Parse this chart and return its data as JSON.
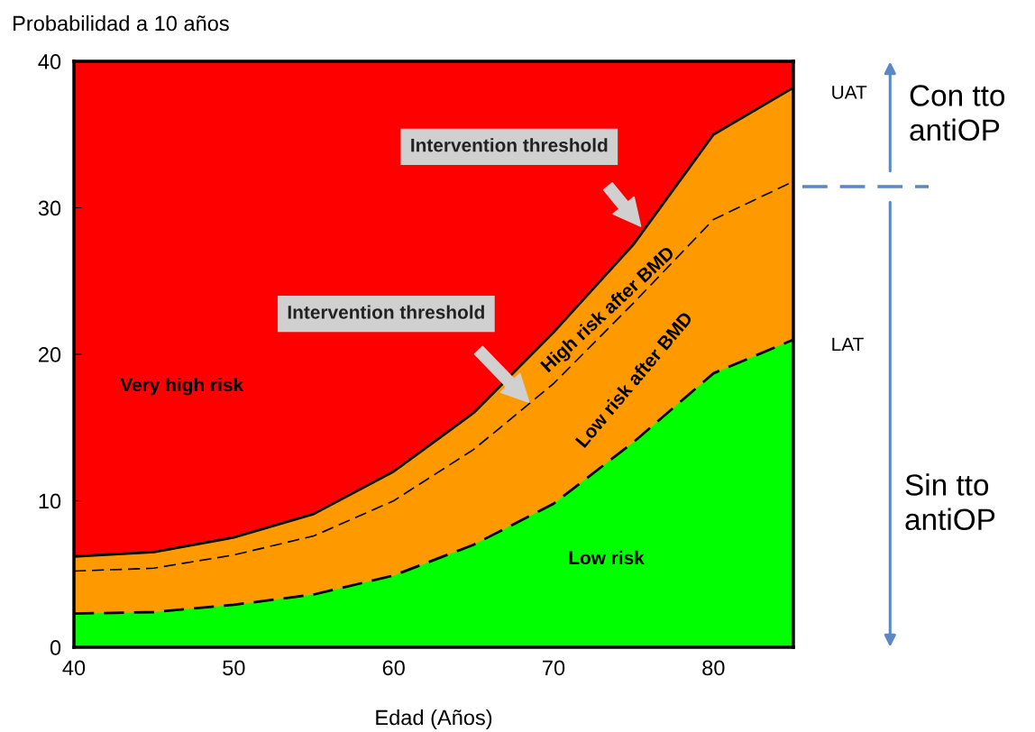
{
  "chart_data": {
    "type": "area",
    "ylabel": "Probabilidad a 10 años",
    "xlabel": "Edad (Años)",
    "x": [
      40,
      45,
      50,
      55,
      60,
      65,
      70,
      75,
      80,
      85
    ],
    "series": [
      {
        "color": "#ff9900",
        "line_style": "solid",
        "values": [
          6.2,
          6.5,
          7.5,
          9.1,
          12,
          16,
          21.5,
          27.5,
          35,
          38.2
        ]
      },
      {
        "type": "line",
        "color": "#000000",
        "line_style": "dashed",
        "values": [
          5.2,
          5.4,
          6.3,
          7.6,
          10,
          13.5,
          18,
          23.5,
          29.2,
          31.8
        ]
      },
      {
        "color": "#00ff00",
        "line_style": "dashed",
        "values": [
          2.3,
          2.4,
          2.9,
          3.6,
          4.9,
          7,
          9.8,
          14,
          18.7,
          21
        ]
      }
    ],
    "bands": [
      {
        "axis": "y",
        "from": 0,
        "to": 40,
        "color": "#ff0000"
      }
    ],
    "xlim": [
      40,
      85
    ],
    "ylim": [
      0,
      40
    ],
    "xticks": [
      40,
      50,
      60,
      70,
      80
    ],
    "yticks": [
      0,
      10,
      20,
      30,
      40
    ],
    "grid": false,
    "annotations": [
      "Very high risk",
      "Low risk",
      "High risk after BMD",
      "Low risk after BMD",
      "Intervention threshold",
      "Intervention threshold",
      {
        "text": "UAT",
        "x": 85,
        "y": 38.2
      },
      {
        "text": "LAT",
        "x": 85,
        "y": 21
      },
      "Con tto\nantiOP",
      "Sin tto\nantiOP"
    ]
  }
}
